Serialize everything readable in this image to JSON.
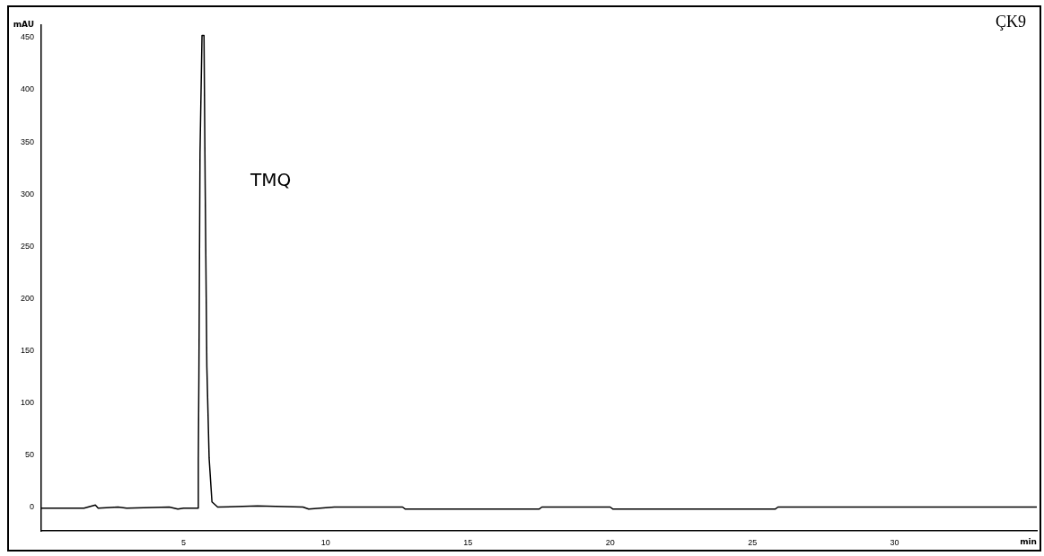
{
  "chart_data": {
    "type": "line",
    "xlabel": "min",
    "ylabel": "mAU",
    "x": [
      0,
      1.5,
      1.9,
      2.0,
      2.7,
      3.0,
      4.5,
      4.8,
      5.0,
      5.5,
      5.52,
      5.54,
      5.58,
      5.65,
      5.72,
      5.76,
      5.82,
      5.9,
      6.0,
      6.2,
      7.6,
      9.2,
      9.4,
      10.3,
      12.7,
      12.8,
      17.5,
      17.6,
      20.0,
      20.1,
      25.8,
      25.9,
      35
    ],
    "series": [
      {
        "color": "#000000",
        "values": [
          -1,
          -1,
          2,
          -1,
          0,
          -1,
          0,
          -2,
          -1,
          -1,
          46,
          123,
          340,
          452,
          452,
          312,
          135,
          47,
          5,
          0,
          1,
          0,
          -2,
          0,
          0,
          -2,
          -2,
          0,
          0,
          -2,
          -2,
          0,
          0
        ]
      }
    ],
    "xlim": [
      0,
      35
    ],
    "xticks": [
      5,
      10,
      15,
      20,
      25,
      30
    ],
    "ylim": [
      -23,
      462
    ],
    "yticks": [
      0,
      50,
      100,
      150,
      200,
      250,
      300,
      350,
      400,
      450
    ],
    "grid": false,
    "legend": false,
    "marker": "none",
    "line_style": "solid",
    "annotations": [
      "TMQ",
      "ÇK9"
    ]
  }
}
